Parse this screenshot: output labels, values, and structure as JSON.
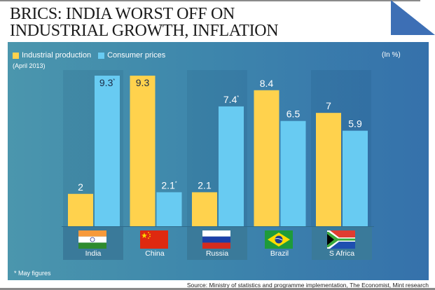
{
  "title_lines": [
    "BRICS: INDIA WORST OFF ON",
    "INDUSTRIAL GROWTH, INFLATION"
  ],
  "legend": [
    {
      "label": "Industrial production",
      "color": "#ffd24d"
    },
    {
      "label": "Consumer prices",
      "color": "#68cbf2"
    }
  ],
  "period_note": "(April 2013)",
  "unit_note": "(In %)",
  "footnote": "* May figures",
  "source": "Source: Ministry of statistics and programme implementation, The Economist, Mint research",
  "chart_data": {
    "type": "bar",
    "title": "BRICS: INDIA WORST OFF ON INDUSTRIAL GROWTH, INFLATION",
    "subtitle": "(April 2013)",
    "ylabel": "(In %)",
    "xlabel": "",
    "categories": [
      "India",
      "China",
      "Russia",
      "Brazil",
      "S Africa"
    ],
    "series": [
      {
        "name": "Industrial production",
        "color": "#ffd24d",
        "values": [
          2,
          9.3,
          2.1,
          8.4,
          7
        ],
        "labels": [
          "2",
          "9.3",
          "2.1",
          "8.4",
          "7"
        ]
      },
      {
        "name": "Consumer prices",
        "color": "#68cbf2",
        "values": [
          9.3,
          2.1,
          7.4,
          6.5,
          5.9
        ],
        "labels": [
          "9.3*",
          "2.1*",
          "7.4*",
          "6.5",
          "5.9"
        ]
      }
    ],
    "ylim": [
      0,
      9.3
    ],
    "grid": false,
    "legend_position": "top-left",
    "annotations": [
      "* May figures"
    ]
  }
}
